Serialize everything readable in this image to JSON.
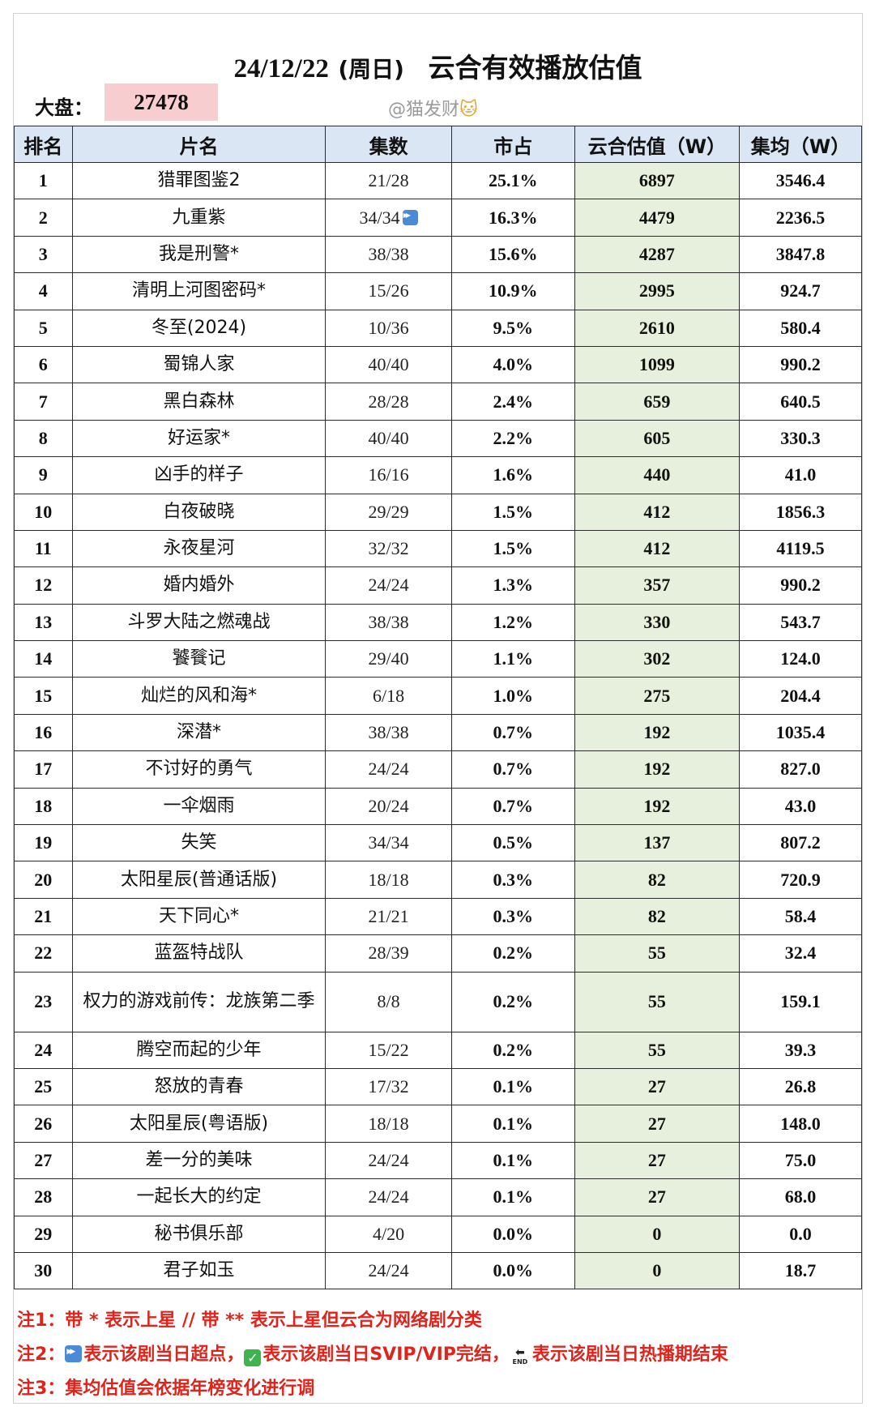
{
  "header": {
    "date": "24/12/22",
    "weekday": "(周日)",
    "title": "云合有效播放估值",
    "dapan_label": "大盘：",
    "dapan_value": "27478",
    "watermark": "@猫发财"
  },
  "columns": [
    "排名",
    "片名",
    "集数",
    "市占",
    "云合估值（W）",
    "集均（W）"
  ],
  "rows": [
    {
      "rank": "1",
      "name": "猎罪图鉴2",
      "eps": "21/28",
      "share": "25.1%",
      "value": "6897",
      "avg": "3546.4"
    },
    {
      "rank": "2",
      "name": "九重紫",
      "eps": "34/34",
      "share": "16.3%",
      "value": "4479",
      "avg": "2236.5",
      "badge": "fast-forward-icon"
    },
    {
      "rank": "3",
      "name": "我是刑警*",
      "eps": "38/38",
      "share": "15.6%",
      "value": "4287",
      "avg": "3847.8"
    },
    {
      "rank": "4",
      "name": "清明上河图密码*",
      "eps": "15/26",
      "share": "10.9%",
      "value": "2995",
      "avg": "924.7"
    },
    {
      "rank": "5",
      "name": "冬至(2024)",
      "eps": "10/36",
      "share": "9.5%",
      "value": "2610",
      "avg": "580.4"
    },
    {
      "rank": "6",
      "name": "蜀锦人家",
      "eps": "40/40",
      "share": "4.0%",
      "value": "1099",
      "avg": "990.2"
    },
    {
      "rank": "7",
      "name": "黑白森林",
      "eps": "28/28",
      "share": "2.4%",
      "value": "659",
      "avg": "640.5"
    },
    {
      "rank": "8",
      "name": "好运家*",
      "eps": "40/40",
      "share": "2.2%",
      "value": "605",
      "avg": "330.3"
    },
    {
      "rank": "9",
      "name": "凶手的样子",
      "eps": "16/16",
      "share": "1.6%",
      "value": "440",
      "avg": "41.0"
    },
    {
      "rank": "10",
      "name": "白夜破晓",
      "eps": "29/29",
      "share": "1.5%",
      "value": "412",
      "avg": "1856.3"
    },
    {
      "rank": "11",
      "name": "永夜星河",
      "eps": "32/32",
      "share": "1.5%",
      "value": "412",
      "avg": "4119.5"
    },
    {
      "rank": "12",
      "name": "婚内婚外",
      "eps": "24/24",
      "share": "1.3%",
      "value": "357",
      "avg": "990.2"
    },
    {
      "rank": "13",
      "name": "斗罗大陆之燃魂战",
      "eps": "38/38",
      "share": "1.2%",
      "value": "330",
      "avg": "543.7"
    },
    {
      "rank": "14",
      "name": "饕餮记",
      "eps": "29/40",
      "share": "1.1%",
      "value": "302",
      "avg": "124.0"
    },
    {
      "rank": "15",
      "name": "灿烂的风和海*",
      "eps": "6/18",
      "share": "1.0%",
      "value": "275",
      "avg": "204.4"
    },
    {
      "rank": "16",
      "name": "深潜*",
      "eps": "38/38",
      "share": "0.7%",
      "value": "192",
      "avg": "1035.4"
    },
    {
      "rank": "17",
      "name": "不讨好的勇气",
      "eps": "24/24",
      "share": "0.7%",
      "value": "192",
      "avg": "827.0"
    },
    {
      "rank": "18",
      "name": "一伞烟雨",
      "eps": "20/24",
      "share": "0.7%",
      "value": "192",
      "avg": "43.0"
    },
    {
      "rank": "19",
      "name": "失笑",
      "eps": "34/34",
      "share": "0.5%",
      "value": "137",
      "avg": "807.2"
    },
    {
      "rank": "20",
      "name": "太阳星辰(普通话版)",
      "eps": "18/18",
      "share": "0.3%",
      "value": "82",
      "avg": "720.9"
    },
    {
      "rank": "21",
      "name": "天下同心*",
      "eps": "21/21",
      "share": "0.3%",
      "value": "82",
      "avg": "58.4"
    },
    {
      "rank": "22",
      "name": "蓝盔特战队",
      "eps": "28/39",
      "share": "0.2%",
      "value": "55",
      "avg": "32.4"
    },
    {
      "rank": "23",
      "name": "权力的游戏前传：龙族第二季",
      "eps": "8/8",
      "share": "0.2%",
      "value": "55",
      "avg": "159.1"
    },
    {
      "rank": "24",
      "name": "腾空而起的少年",
      "eps": "15/22",
      "share": "0.2%",
      "value": "55",
      "avg": "39.3"
    },
    {
      "rank": "25",
      "name": "怒放的青春",
      "eps": "17/32",
      "share": "0.1%",
      "value": "27",
      "avg": "26.8"
    },
    {
      "rank": "26",
      "name": "太阳星辰(粤语版)",
      "eps": "18/18",
      "share": "0.1%",
      "value": "27",
      "avg": "148.0"
    },
    {
      "rank": "27",
      "name": "差一分的美味",
      "eps": "24/24",
      "share": "0.1%",
      "value": "27",
      "avg": "75.0"
    },
    {
      "rank": "28",
      "name": "一起长大的约定",
      "eps": "24/24",
      "share": "0.1%",
      "value": "27",
      "avg": "68.0"
    },
    {
      "rank": "29",
      "name": "秘书俱乐部",
      "eps": "4/20",
      "share": "0.0%",
      "value": "0",
      "avg": "0.0"
    },
    {
      "rank": "30",
      "name": "君子如玉",
      "eps": "24/24",
      "share": "0.0%",
      "value": "0",
      "avg": "18.7"
    }
  ],
  "notes": {
    "n1": "注1：带 * 表示上星 // 带 ** 表示上星但云合为网络剧分类",
    "n2_prefix": "注2：",
    "n2_a": "表示该剧当日超点，",
    "n2_b": "表示该剧当日SVIP/VIP完结，",
    "n2_end_label": "END",
    "n2_c": "表示该剧当日热播期结束",
    "n3": "注3：集均估值会依据年榜变化进行调"
  },
  "colors": {
    "header_bg": "#dbe6f4",
    "value_col_bg": "#e6f0dc",
    "dapan_bg": "#f7cdd0",
    "note_red": "#e0241b"
  }
}
